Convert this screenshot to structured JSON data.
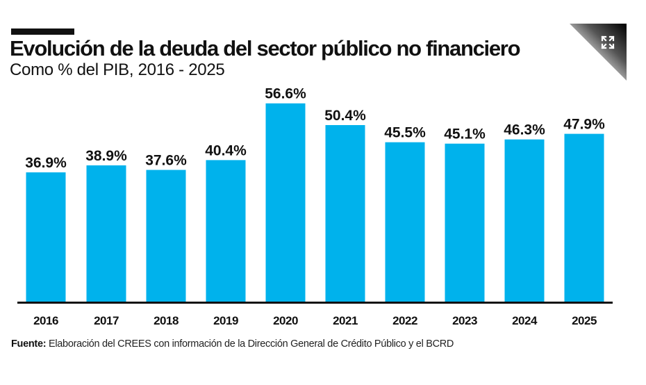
{
  "header": {
    "title": "Evolución de la deuda del sector público no financiero",
    "subtitle": "Como % del PIB, 2016 - 2025",
    "expand_icon": "expand-arrows-icon"
  },
  "footer": {
    "source_label": "Fuente:",
    "source_text": "Elaboración del CREES con información de la Dirección General de Crédito Público y el BCRD"
  },
  "colors": {
    "bar": "#00b2ec",
    "text": "#111111"
  },
  "chart_data": {
    "type": "bar",
    "title": "Evolución de la deuda del sector público no financiero",
    "subtitle": "Como % del PIB, 2016 - 2025",
    "xlabel": "",
    "ylabel": "% del PIB",
    "categories": [
      "2016",
      "2017",
      "2018",
      "2019",
      "2020",
      "2021",
      "2022",
      "2023",
      "2024",
      "2025"
    ],
    "values": [
      36.9,
      38.9,
      37.6,
      40.4,
      56.6,
      50.4,
      45.5,
      45.1,
      46.3,
      47.9
    ],
    "value_labels": [
      "36.9%",
      "38.9%",
      "37.6%",
      "40.4%",
      "56.6%",
      "50.4%",
      "45.5%",
      "45.1%",
      "46.3%",
      "47.9%"
    ],
    "ylim": [
      0,
      60
    ],
    "grid": false,
    "legend": "none",
    "source": "Fuente: Elaboración del CREES con información de la Dirección General de Crédito Público y el BCRD"
  }
}
